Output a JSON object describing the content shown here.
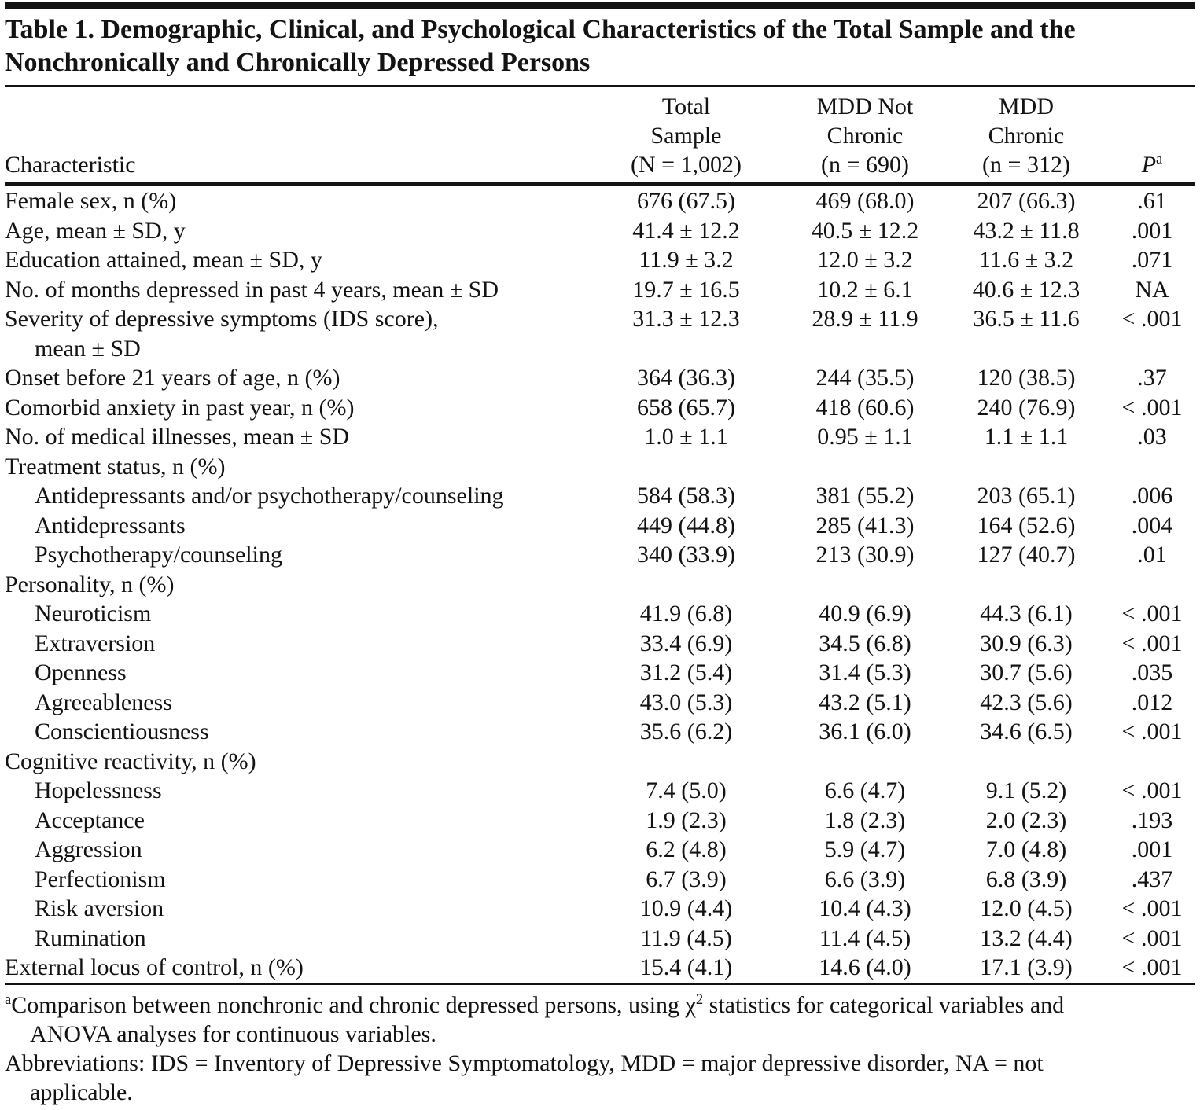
{
  "table": {
    "title_line1": "Table 1. Demographic, Clinical, and Psychological Characteristics of the Total Sample and the",
    "title_line2": "Nonchronically and Chronically Depressed Persons",
    "header": {
      "characteristic": "Characteristic",
      "col_total": [
        "Total",
        "Sample",
        "(N = 1,002)"
      ],
      "col_nonchronic": [
        "MDD Not",
        "Chronic",
        "(n = 690)"
      ],
      "col_chronic": [
        "MDD",
        "Chronic",
        "(n = 312)"
      ],
      "p_base": "P",
      "p_sup": "a"
    },
    "rows": [
      {
        "label": "Female sex, n (%)",
        "total": "676 (67.5)",
        "nonchronic": "469 (68.0)",
        "chronic": "207 (66.3)",
        "p": ".61"
      },
      {
        "label": "Age, mean ± SD, y",
        "total": "41.4 ± 12.2",
        "nonchronic": "40.5 ± 12.2",
        "chronic": "43.2 ± 11.8",
        "p": ".001"
      },
      {
        "label": "Education attained, mean ± SD, y",
        "total": "11.9 ± 3.2",
        "nonchronic": "12.0 ± 3.2",
        "chronic": "11.6 ± 3.2",
        "p": ".071"
      },
      {
        "label": "No. of months depressed in past 4 years, mean ± SD",
        "total": "19.7 ± 16.5",
        "nonchronic": "10.2 ± 6.1",
        "chronic": "40.6 ± 12.3",
        "p": "NA"
      },
      {
        "label": "Severity of depressive symptoms (IDS score),",
        "label2": "mean ± SD",
        "total": "31.3 ± 12.3",
        "nonchronic": "28.9 ± 11.9",
        "chronic": "36.5 ± 11.6",
        "p": "< .001"
      },
      {
        "label": "Onset before 21 years of age, n (%)",
        "total": "364 (36.3)",
        "nonchronic": "244 (35.5)",
        "chronic": "120 (38.5)",
        "p": ".37"
      },
      {
        "label": "Comorbid anxiety in past year, n (%)",
        "total": "658 (65.7)",
        "nonchronic": "418 (60.6)",
        "chronic": "240 (76.9)",
        "p": "< .001"
      },
      {
        "label": "No. of medical illnesses, mean ± SD",
        "total": "1.0 ± 1.1",
        "nonchronic": "0.95 ± 1.1",
        "chronic": "1.1 ± 1.1",
        "p": ".03"
      },
      {
        "label": "Treatment status, n (%)",
        "section": true,
        "total": "",
        "nonchronic": "",
        "chronic": "",
        "p": ""
      },
      {
        "label": "Antidepressants and/or psychotherapy/counseling",
        "indent": true,
        "total": "584 (58.3)",
        "nonchronic": "381 (55.2)",
        "chronic": "203 (65.1)",
        "p": ".006"
      },
      {
        "label": "Antidepressants",
        "indent": true,
        "total": "449 (44.8)",
        "nonchronic": "285 (41.3)",
        "chronic": "164 (52.6)",
        "p": ".004"
      },
      {
        "label": "Psychotherapy/counseling",
        "indent": true,
        "total": "340 (33.9)",
        "nonchronic": "213 (30.9)",
        "chronic": "127 (40.7)",
        "p": ".01"
      },
      {
        "label": "Personality, n (%)",
        "section": true,
        "total": "",
        "nonchronic": "",
        "chronic": "",
        "p": ""
      },
      {
        "label": "Neuroticism",
        "indent": true,
        "total": "41.9 (6.8)",
        "nonchronic": "40.9 (6.9)",
        "chronic": "44.3 (6.1)",
        "p": "< .001"
      },
      {
        "label": "Extraversion",
        "indent": true,
        "total": "33.4 (6.9)",
        "nonchronic": "34.5 (6.8)",
        "chronic": "30.9 (6.3)",
        "p": "< .001"
      },
      {
        "label": "Openness",
        "indent": true,
        "total": "31.2 (5.4)",
        "nonchronic": "31.4 (5.3)",
        "chronic": "30.7 (5.6)",
        "p": ".035"
      },
      {
        "label": "Agreeableness",
        "indent": true,
        "total": "43.0 (5.3)",
        "nonchronic": "43.2 (5.1)",
        "chronic": "42.3 (5.6)",
        "p": ".012"
      },
      {
        "label": "Conscientiousness",
        "indent": true,
        "total": "35.6 (6.2)",
        "nonchronic": "36.1 (6.0)",
        "chronic": "34.6 (6.5)",
        "p": "< .001"
      },
      {
        "label": "Cognitive reactivity, n (%)",
        "section": true,
        "total": "",
        "nonchronic": "",
        "chronic": "",
        "p": ""
      },
      {
        "label": "Hopelessness",
        "indent": true,
        "total": "7.4 (5.0)",
        "nonchronic": "6.6 (4.7)",
        "chronic": "9.1 (5.2)",
        "p": "< .001"
      },
      {
        "label": "Acceptance",
        "indent": true,
        "total": "1.9 (2.3)",
        "nonchronic": "1.8 (2.3)",
        "chronic": "2.0 (2.3)",
        "p": ".193"
      },
      {
        "label": "Aggression",
        "indent": true,
        "total": "6.2 (4.8)",
        "nonchronic": "5.9 (4.7)",
        "chronic": "7.0 (4.8)",
        "p": ".001"
      },
      {
        "label": "Perfectionism",
        "indent": true,
        "total": "6.7 (3.9)",
        "nonchronic": "6.6 (3.9)",
        "chronic": "6.8 (3.9)",
        "p": ".437"
      },
      {
        "label": "Risk aversion",
        "indent": true,
        "total": "10.9 (4.4)",
        "nonchronic": "10.4 (4.3)",
        "chronic": "12.0 (4.5)",
        "p": "< .001"
      },
      {
        "label": "Rumination",
        "indent": true,
        "total": "11.9 (4.5)",
        "nonchronic": "11.4 (4.5)",
        "chronic": "13.2 (4.4)",
        "p": "< .001"
      },
      {
        "label": "External locus of control, n (%)",
        "total": "15.4 (4.1)",
        "nonchronic": "14.6 (4.0)",
        "chronic": "17.1 (3.9)",
        "p": "< .001"
      }
    ],
    "footnotes": {
      "a": {
        "marker": "a",
        "line1_pre_chi": "Comparison between nonchronic and chronic depressed persons, using χ",
        "chi_sup": "2",
        "line1_post_chi": " statistics for categorical variables and",
        "line2": "ANOVA analyses for continuous variables."
      },
      "abbrev_line1": "Abbreviations: IDS = Inventory of Depressive Symptomatology, MDD = major depressive disorder, NA = not",
      "abbrev_line2": "applicable."
    }
  }
}
